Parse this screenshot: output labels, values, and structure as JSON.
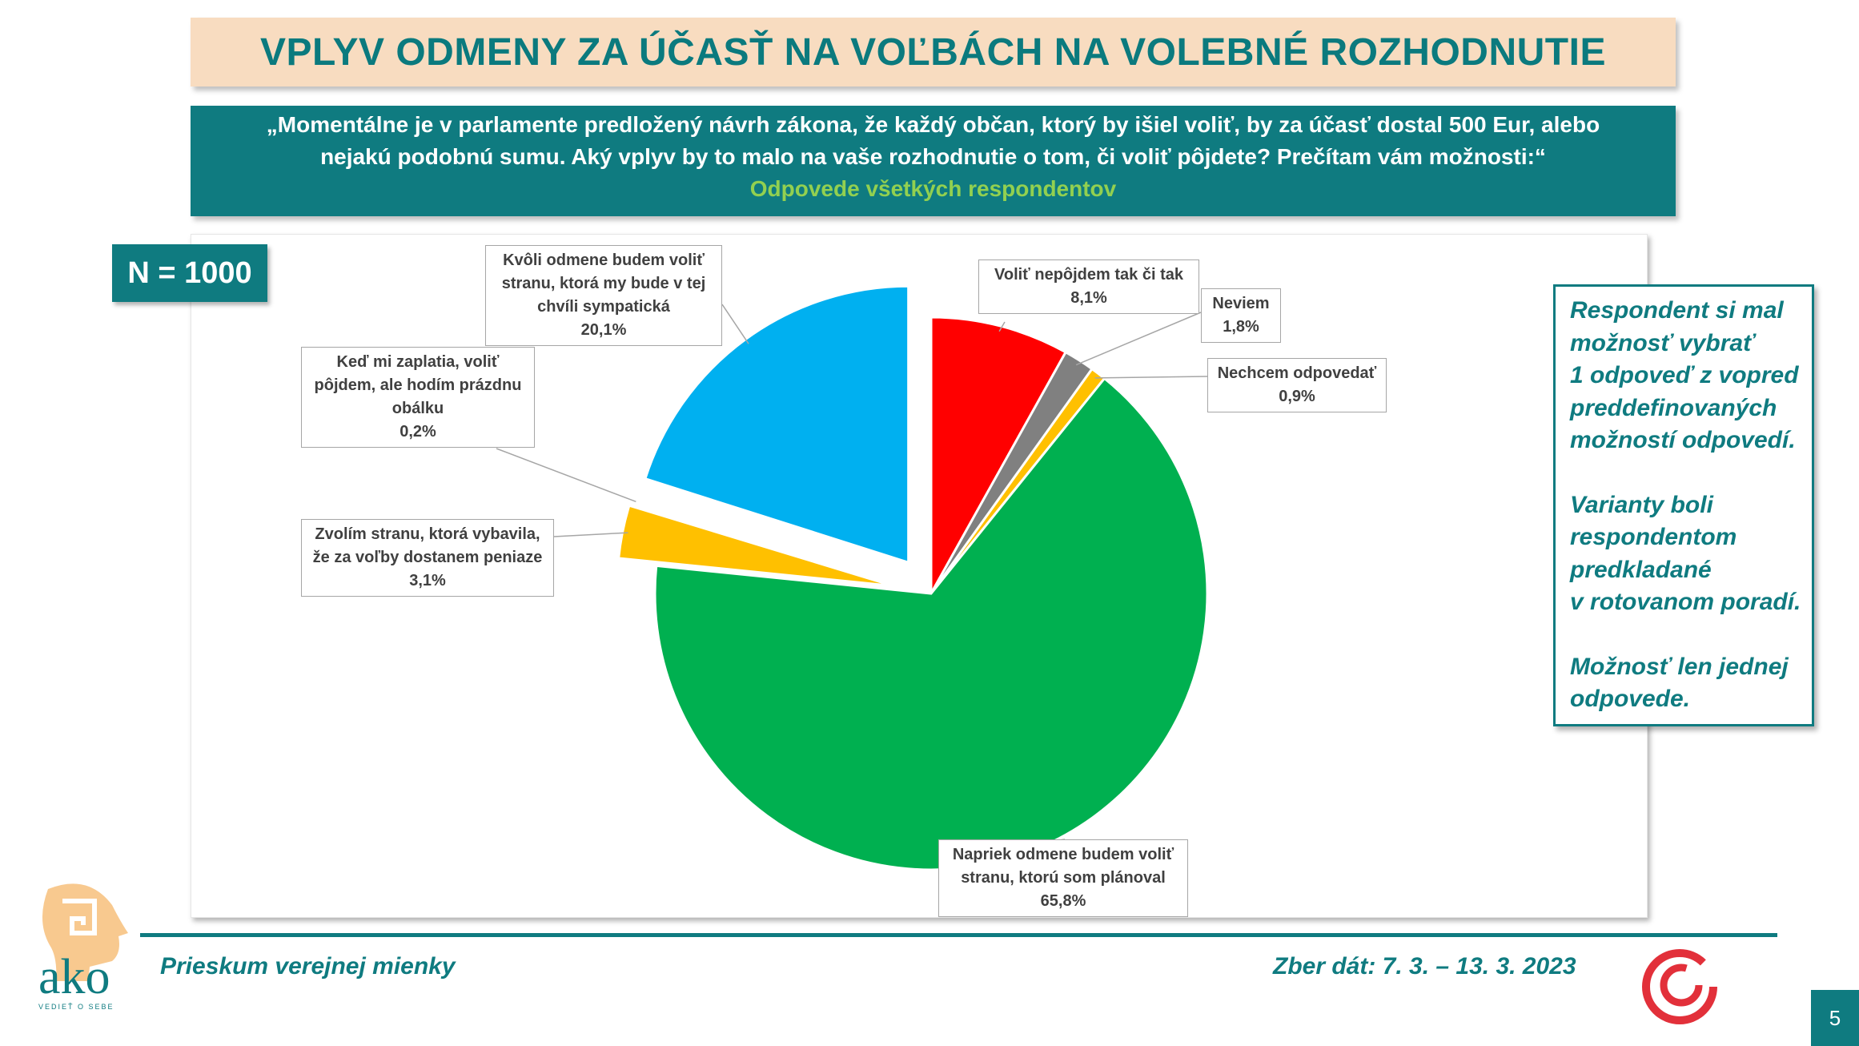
{
  "title": "VPLYV ODMENY ZA ÚČASŤ NA VOĽBÁCH NA VOLEBNÉ ROZHODNUTIE",
  "question": {
    "line1": "„Momentálne je v parlamente predložený návrh zákona, že každý občan, ktorý by išiel voliť, by za účasť dostal 500 Eur, alebo",
    "line2": "nejakú podobnú sumu. Aký vplyv by to malo na  vaše rozhodnutie o tom, či voliť pôjdete? Prečítam vám možnosti:“",
    "subtitle": "Odpovede všetkých respondentov"
  },
  "sample_size": "N = 1000",
  "note": {
    "p1": "Respondent si mal\nmožnosť vybrať\n1 odpoveď z vopred\npreddefinovaných\nmožností odpovedí.",
    "p2": "Varianty boli\nrespondentom\npredkladané\nv rotovanom poradí.",
    "p3": "Možnosť len jednej\nodpovede."
  },
  "chart_data": {
    "type": "pie",
    "slices": [
      {
        "label": "Voliť nepôjdem tak či tak",
        "value": 8.1,
        "value_label": "8,1%",
        "color": "#ff0000",
        "exploded": false
      },
      {
        "label": "Neviem",
        "value": 1.8,
        "value_label": "1,8%",
        "color": "#808080",
        "exploded": false
      },
      {
        "label": "Nechcem odpovedať",
        "value": 0.9,
        "value_label": "0,9%",
        "color": "#ffc000",
        "exploded": false
      },
      {
        "label": "Napriek odmene budem voliť stranu, ktorú som plánoval",
        "value": 65.8,
        "value_label": "65,8%",
        "color": "#00b050",
        "exploded": false
      },
      {
        "label": "Zvolím stranu, ktorá vybavila, že za voľby dostanem peniaze",
        "value": 3.1,
        "value_label": "3,1%",
        "color": "#ffc000",
        "exploded": true
      },
      {
        "label": "Keď mi zaplatia, voliť pôjdem, ale hodím prázdnu obálku",
        "value": 0.2,
        "value_label": "0,2%",
        "color": "#ffffff",
        "exploded": true
      },
      {
        "label": "Kvôli odmene budem voliť stranu, ktorá my bude v tej chvíli sympatická",
        "value": 20.1,
        "value_label": "20,1%",
        "color": "#00b0f0",
        "exploded": true
      }
    ]
  },
  "footer": {
    "left": "Prieskum verejnej mienky",
    "right": "Zber dát: 7. 3. – 13. 3. 2023",
    "page": "5",
    "logo_text": "ako",
    "logo_tagline": "VEDIEŤ O SEBE"
  }
}
